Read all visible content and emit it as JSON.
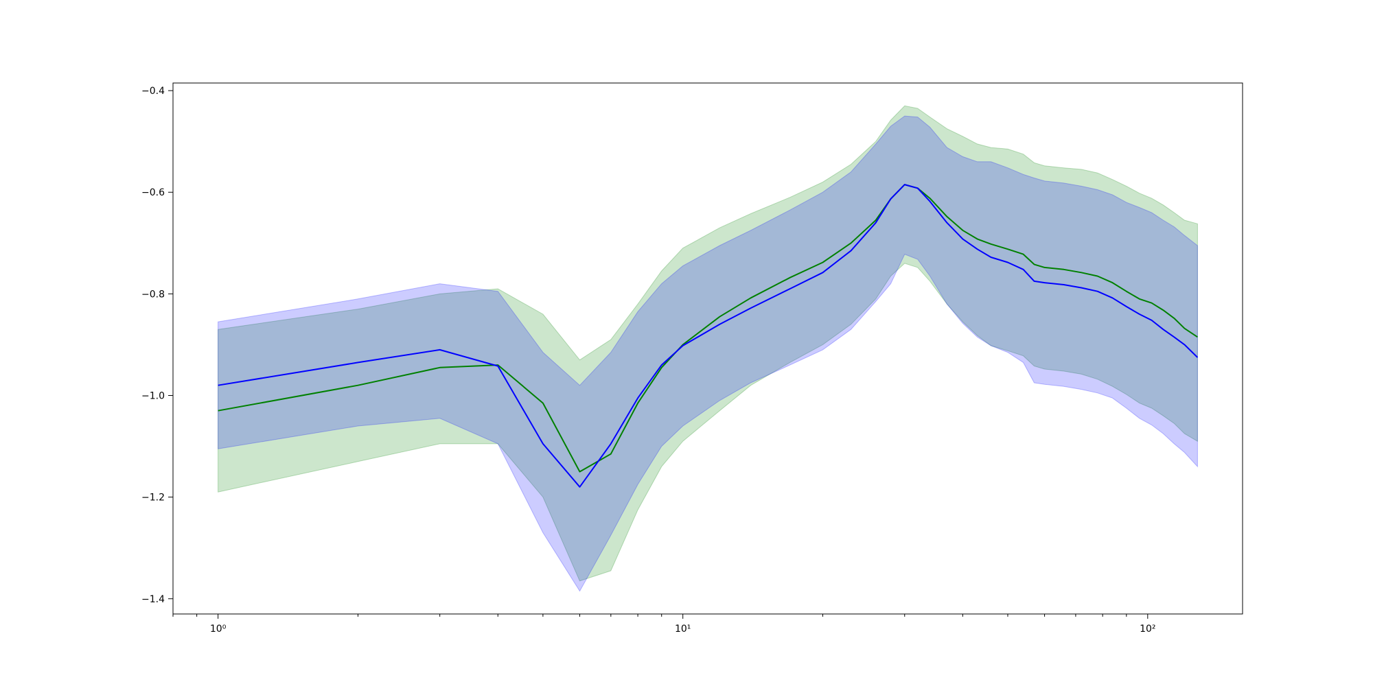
{
  "chart_data": {
    "type": "line",
    "xscale": "log",
    "xlim": [
      0.8,
      160
    ],
    "ylim": [
      -1.43,
      -0.385
    ],
    "grid": false,
    "x_ticks": [
      {
        "value": 1,
        "label": "10⁰"
      },
      {
        "value": 10,
        "label": "10¹"
      },
      {
        "value": 100,
        "label": "10²"
      }
    ],
    "y_ticks": [
      {
        "value": -0.4,
        "label": "−0.4"
      },
      {
        "value": -0.6,
        "label": "−0.6"
      },
      {
        "value": -0.8,
        "label": "−0.8"
      },
      {
        "value": -1.0,
        "label": "−1.0"
      },
      {
        "value": -1.2,
        "label": "−1.2"
      },
      {
        "value": -1.4,
        "label": "−1.4"
      }
    ],
    "series": [
      {
        "color": "#008000",
        "band_color": "#008000",
        "x": [
          1,
          2,
          3,
          4,
          5,
          6,
          7,
          8,
          9,
          10,
          12,
          14,
          17,
          20,
          23,
          26,
          28,
          30,
          32,
          34,
          37,
          40,
          43,
          46,
          50,
          54,
          57,
          60,
          66,
          72,
          78,
          84,
          90,
          96,
          102,
          108,
          114,
          120,
          128
        ],
        "mean": [
          -1.03,
          -0.98,
          -0.945,
          -0.94,
          -1.015,
          -1.15,
          -1.115,
          -1.015,
          -0.945,
          -0.9,
          -0.845,
          -0.808,
          -0.768,
          -0.738,
          -0.7,
          -0.655,
          -0.613,
          -0.585,
          -0.592,
          -0.612,
          -0.648,
          -0.675,
          -0.692,
          -0.702,
          -0.712,
          -0.722,
          -0.742,
          -0.748,
          -0.752,
          -0.758,
          -0.765,
          -0.778,
          -0.795,
          -0.81,
          -0.818,
          -0.832,
          -0.848,
          -0.868,
          -0.885
        ],
        "upper": [
          -0.87,
          -0.83,
          -0.8,
          -0.79,
          -0.84,
          -0.93,
          -0.89,
          -0.82,
          -0.755,
          -0.71,
          -0.67,
          -0.642,
          -0.61,
          -0.58,
          -0.545,
          -0.5,
          -0.458,
          -0.43,
          -0.435,
          -0.452,
          -0.475,
          -0.49,
          -0.505,
          -0.512,
          -0.515,
          -0.525,
          -0.542,
          -0.548,
          -0.552,
          -0.555,
          -0.562,
          -0.575,
          -0.588,
          -0.602,
          -0.612,
          -0.625,
          -0.64,
          -0.655,
          -0.662
        ],
        "lower": [
          -1.19,
          -1.13,
          -1.095,
          -1.095,
          -1.2,
          -1.365,
          -1.345,
          -1.225,
          -1.14,
          -1.09,
          -1.03,
          -0.98,
          -0.935,
          -0.9,
          -0.86,
          -0.81,
          -0.765,
          -0.74,
          -0.748,
          -0.775,
          -0.82,
          -0.855,
          -0.882,
          -0.902,
          -0.912,
          -0.922,
          -0.942,
          -0.948,
          -0.952,
          -0.958,
          -0.968,
          -0.982,
          -0.998,
          -1.015,
          -1.025,
          -1.04,
          -1.055,
          -1.075,
          -1.09
        ]
      },
      {
        "color": "#0000ff",
        "band_color": "#0000ff",
        "x": [
          1,
          2,
          3,
          4,
          5,
          6,
          7,
          8,
          9,
          10,
          12,
          14,
          17,
          20,
          23,
          26,
          28,
          30,
          32,
          34,
          37,
          40,
          43,
          46,
          50,
          54,
          57,
          60,
          66,
          72,
          78,
          84,
          90,
          96,
          102,
          108,
          114,
          120,
          128
        ],
        "mean": [
          -0.98,
          -0.935,
          -0.91,
          -0.942,
          -1.095,
          -1.18,
          -1.095,
          -1.005,
          -0.94,
          -0.902,
          -0.86,
          -0.828,
          -0.79,
          -0.758,
          -0.715,
          -0.66,
          -0.613,
          -0.585,
          -0.592,
          -0.618,
          -0.66,
          -0.692,
          -0.712,
          -0.728,
          -0.738,
          -0.752,
          -0.775,
          -0.778,
          -0.782,
          -0.788,
          -0.795,
          -0.808,
          -0.825,
          -0.84,
          -0.852,
          -0.87,
          -0.885,
          -0.9,
          -0.925
        ],
        "upper": [
          -0.855,
          -0.81,
          -0.78,
          -0.795,
          -0.915,
          -0.98,
          -0.915,
          -0.835,
          -0.78,
          -0.745,
          -0.705,
          -0.675,
          -0.635,
          -0.6,
          -0.56,
          -0.505,
          -0.47,
          -0.45,
          -0.452,
          -0.472,
          -0.512,
          -0.53,
          -0.54,
          -0.54,
          -0.552,
          -0.565,
          -0.572,
          -0.578,
          -0.582,
          -0.588,
          -0.595,
          -0.605,
          -0.62,
          -0.63,
          -0.64,
          -0.655,
          -0.668,
          -0.685,
          -0.705
        ],
        "lower": [
          -1.105,
          -1.06,
          -1.045,
          -1.095,
          -1.27,
          -1.385,
          -1.275,
          -1.175,
          -1.1,
          -1.06,
          -1.01,
          -0.975,
          -0.94,
          -0.91,
          -0.87,
          -0.815,
          -0.78,
          -0.722,
          -0.732,
          -0.765,
          -0.82,
          -0.858,
          -0.885,
          -0.902,
          -0.915,
          -0.935,
          -0.975,
          -0.978,
          -0.982,
          -0.988,
          -0.995,
          -1.005,
          -1.025,
          -1.045,
          -1.058,
          -1.075,
          -1.095,
          -1.112,
          -1.14
        ]
      }
    ]
  }
}
